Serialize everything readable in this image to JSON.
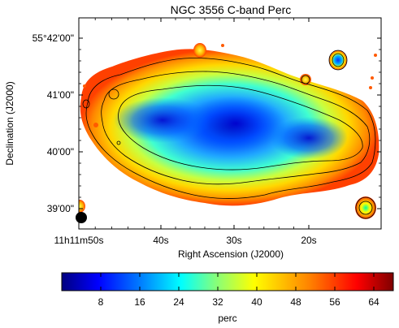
{
  "chart_data": {
    "type": "heatmap",
    "title": "NGC 3556   C-band   Perc",
    "xlabel": "Right Ascension (J2000)",
    "ylabel": "Declination (J2000)",
    "x_ticks": [
      "11h11m50s",
      "40s",
      "30s",
      "20s"
    ],
    "y_ticks": [
      "55°42'00\"",
      "41'00\"",
      "40'00\"",
      "39'00\""
    ],
    "colorbar": {
      "label": "perc",
      "range": [
        0,
        68
      ],
      "ticks": [
        8,
        16,
        24,
        32,
        40,
        48,
        56,
        64
      ],
      "colormap": "jet"
    },
    "contours": "total intensity contours overlaid (black)",
    "beam": "filled circle, lower-left corner"
  },
  "colors": {
    "frame": "#000000",
    "contour": "#000000",
    "beam": "#000000",
    "colormap_stops": [
      "#00007f",
      "#0000ff",
      "#0080ff",
      "#00ffff",
      "#80ff80",
      "#ffff00",
      "#ff8000",
      "#ff0000",
      "#7f0000"
    ]
  }
}
